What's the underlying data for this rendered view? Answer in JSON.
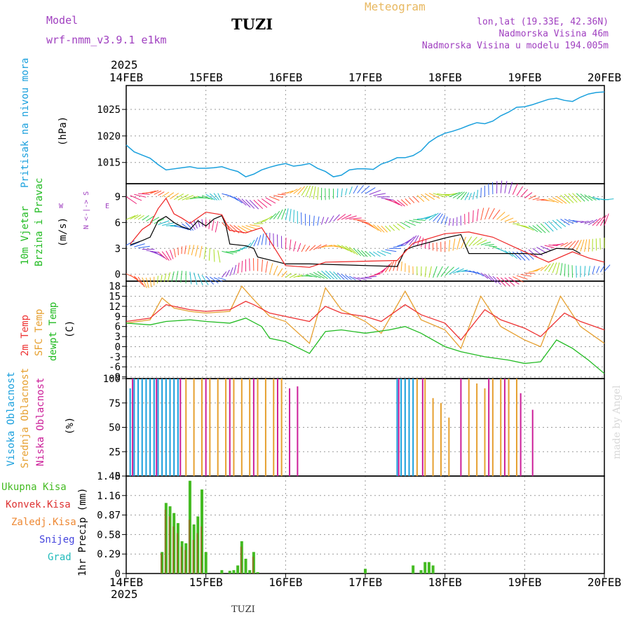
{
  "header": {
    "model_label": "Model",
    "model_name": "wrf-nmm_v3.9.1 e1km",
    "station": "TUZI",
    "product": "Meteogram",
    "lonlat": "lon,lat (19.33E, 42.36N)",
    "elevation": "Nadmorska Visina 46m",
    "model_elevation": "Nadmorska Visina u modelu 194.005m",
    "year": "2025",
    "footer_station": "TUZI",
    "credit": "made by Angel"
  },
  "colors": {
    "pressure": "#1aa0dd",
    "wind_speed": "#000000",
    "gust": "#ee2222",
    "temp2m": "#ee3333",
    "sfc_temp": "#e6a030",
    "dewpt": "#22bb22",
    "high_cloud": "#1aa0dd",
    "mid_cloud": "#e6a030",
    "low_cloud": "#cc1f99",
    "total_precip": "#44bb22",
    "conv_precip": "#dd3333",
    "frozen_precip": "#ee8833",
    "snow": "#4444dd",
    "hail": "#22bbbb",
    "header_violet": "#a040c0",
    "meteogram_title": "#e8b860"
  },
  "chart_data": [
    {
      "type": "line",
      "panel": "pressure",
      "xlabels": [
        "14FEB",
        "15FEB",
        "16FEB",
        "17FEB",
        "18FEB",
        "19FEB",
        "20FEB"
      ],
      "ylabel_main": "Pritisak na nivou mora",
      "ylabel_unit": "(hPa)",
      "yticks": [
        1015,
        1020,
        1025
      ],
      "ylim": [
        1011,
        1029.5
      ],
      "series": [
        {
          "x": [
            0,
            0.1,
            0.2,
            0.3,
            0.4,
            0.5,
            0.6,
            0.7,
            0.8,
            0.9,
            1,
            1.1,
            1.2,
            1.3,
            1.4,
            1.5,
            1.6,
            1.7,
            1.8,
            1.9,
            2,
            2.1,
            2.2,
            2.3,
            2.4,
            2.5,
            2.6,
            2.7,
            2.8,
            2.9,
            3,
            3.1,
            3.2,
            3.3,
            3.4,
            3.5,
            3.6,
            3.7,
            3.8,
            3.9,
            4,
            4.1,
            4.2,
            4.3,
            4.4,
            4.5,
            4.6,
            4.7,
            4.8,
            4.9,
            5,
            5.1,
            5.2,
            5.3,
            5.4,
            5.5,
            5.6,
            5.7,
            5.8,
            5.9,
            6
          ],
          "y": [
            1018.3,
            1017.0,
            1016.4,
            1015.8,
            1014.6,
            1013.6,
            1013.8,
            1014.0,
            1014.2,
            1013.9,
            1013.9,
            1014.0,
            1014.2,
            1013.7,
            1013.3,
            1012.3,
            1012.8,
            1013.6,
            1014.1,
            1014.5,
            1014.8,
            1014.3,
            1014.5,
            1014.8,
            1013.9,
            1013.3,
            1012.3,
            1012.6,
            1013.6,
            1013.8,
            1013.8,
            1013.7,
            1014.7,
            1015.2,
            1015.9,
            1015.9,
            1016.3,
            1017.2,
            1018.8,
            1019.8,
            1020.5,
            1020.9,
            1021.4,
            1022.0,
            1022.5,
            1022.3,
            1022.8,
            1023.8,
            1024.5,
            1025.4,
            1025.5,
            1025.9,
            1026.4,
            1026.9,
            1027.1,
            1026.7,
            1026.5,
            1027.3,
            1027.9,
            1028.2,
            1028.3
          ]
        }
      ]
    },
    {
      "type": "line",
      "panel": "wind",
      "xlabels": [
        "14FEB",
        "15FEB",
        "16FEB",
        "17FEB",
        "18FEB",
        "19FEB",
        "20FEB"
      ],
      "ylabel_main": "10m Vjetar",
      "ylabel_sub": "Brzina i Pravac",
      "ylabel_unit": "(m/s)",
      "compass_ns": "N <-|-> S",
      "compass_w": "W",
      "compass_e": "E",
      "yticks": [
        0,
        3,
        6,
        9
      ],
      "ylim": [
        -0.8,
        10.5
      ],
      "series": [
        {
          "name": "speed",
          "x": [
            0.05,
            0.2,
            0.3,
            0.4,
            0.5,
            0.6,
            0.7,
            0.8,
            0.9,
            1.0,
            1.1,
            1.2,
            1.25,
            1.3,
            1.5,
            1.6,
            1.65,
            2.0,
            2.3,
            3.4,
            3.5,
            3.6,
            4.0,
            4.2,
            4.3,
            5.0,
            5.2,
            5.4,
            5.6,
            5.7
          ],
          "y": [
            3.4,
            3.9,
            4.3,
            6.2,
            6.7,
            6.0,
            5.5,
            5.2,
            6.2,
            5.6,
            6.4,
            6.8,
            5.7,
            3.5,
            3.3,
            3.0,
            2.0,
            1.2,
            1.2,
            0.9,
            2.8,
            3.2,
            4.2,
            4.6,
            2.4,
            2.4,
            2.3,
            3.0,
            2.9,
            2.4
          ]
        },
        {
          "name": "gust",
          "x": [
            0.05,
            0.2,
            0.3,
            0.4,
            0.5,
            0.6,
            0.7,
            0.8,
            1.0,
            1.2,
            1.3,
            1.5,
            1.7,
            2.0,
            2.3,
            2.5,
            3.4,
            3.6,
            4.0,
            4.3,
            4.6,
            5.0,
            5.3,
            5.6,
            5.8,
            6.0
          ],
          "y": [
            3.5,
            5.2,
            5.8,
            7.6,
            8.8,
            7.0,
            6.5,
            5.9,
            7.2,
            6.9,
            5.1,
            4.8,
            5.4,
            1.0,
            0.8,
            1.4,
            1.6,
            3.6,
            4.7,
            4.9,
            4.3,
            2.6,
            1.4,
            2.6,
            1.9,
            1.4
          ]
        }
      ]
    },
    {
      "type": "line",
      "panel": "temperature",
      "xlabels": [
        "14FEB",
        "15FEB",
        "16FEB",
        "17FEB",
        "18FEB",
        "19FEB",
        "20FEB"
      ],
      "ylabel_2m": "2m Temp",
      "ylabel_sfc": "SFC Temp",
      "ylabel_dew": "dewpt Temp",
      "ylabel_unit": "(C)",
      "yticks": [
        -9,
        -6,
        -3,
        0,
        3,
        6,
        9,
        12,
        15,
        18
      ],
      "ylim": [
        -9.5,
        19.5
      ],
      "series": [
        {
          "name": "2m",
          "x": [
            0,
            0.3,
            0.5,
            0.8,
            1.0,
            1.3,
            1.5,
            1.6,
            1.8,
            2.0,
            2.3,
            2.5,
            2.7,
            3.0,
            3.2,
            3.5,
            3.7,
            4.0,
            4.2,
            4.5,
            4.7,
            5.0,
            5.2,
            5.5,
            5.7,
            6.0
          ],
          "y": [
            7.5,
            8.5,
            12.5,
            11.0,
            10.5,
            11.0,
            13.5,
            12.5,
            10.0,
            9.0,
            7.5,
            12.0,
            10.0,
            9.0,
            7.5,
            12.5,
            9.5,
            7.0,
            2.0,
            11.0,
            8.0,
            5.5,
            3.0,
            10.0,
            7.5,
            5.0
          ]
        },
        {
          "name": "sfc",
          "x": [
            0,
            0.3,
            0.45,
            0.6,
            0.8,
            1.0,
            1.3,
            1.45,
            1.6,
            1.8,
            2.0,
            2.3,
            2.5,
            2.7,
            3.0,
            3.2,
            3.5,
            3.7,
            4.0,
            4.2,
            4.45,
            4.7,
            5.0,
            5.2,
            5.45,
            5.7,
            6.0
          ],
          "y": [
            7.0,
            8.0,
            14.5,
            11.5,
            10.5,
            10.0,
            10.5,
            18.0,
            14.0,
            9.0,
            7.5,
            1.0,
            17.5,
            11.0,
            7.5,
            4.0,
            16.5,
            8.0,
            5.0,
            -0.5,
            15.0,
            6.0,
            2.0,
            0.0,
            15.0,
            6.0,
            1.0
          ]
        },
        {
          "name": "dewpt",
          "x": [
            0,
            0.3,
            0.5,
            0.8,
            1.0,
            1.3,
            1.5,
            1.7,
            1.8,
            2.0,
            2.3,
            2.5,
            2.7,
            3.0,
            3.3,
            3.5,
            3.7,
            4.0,
            4.2,
            4.5,
            4.8,
            5.0,
            5.2,
            5.4,
            5.6,
            5.8,
            6.0
          ],
          "y": [
            7.0,
            6.5,
            7.5,
            8.0,
            7.5,
            7.0,
            8.5,
            6.0,
            2.5,
            1.5,
            -2.0,
            4.5,
            5.0,
            4.0,
            5.0,
            6.0,
            4.0,
            0.0,
            -1.5,
            -3.0,
            -4.0,
            -5.0,
            -4.5,
            2.0,
            -0.5,
            -4.0,
            -8.0
          ]
        }
      ]
    },
    {
      "type": "bar",
      "panel": "clouds",
      "xlabels": [
        "14FEB",
        "15FEB",
        "16FEB",
        "17FEB",
        "18FEB",
        "19FEB",
        "20FEB"
      ],
      "ylabel_high": "Visoka Oblacnost",
      "ylabel_mid": "Srednja Oblacnost",
      "ylabel_low": "Niska Oblacnost",
      "ylabel_unit": "(%)",
      "yticks": [
        0,
        25,
        50,
        75,
        100
      ],
      "ylim": [
        0,
        100
      ],
      "series": [
        {
          "name": "high",
          "x": [
            0.05,
            0.1,
            0.15,
            0.2,
            0.25,
            0.3,
            0.35,
            0.4,
            0.45,
            0.5,
            0.55,
            0.6,
            0.65,
            3.4,
            3.45,
            3.5,
            3.55,
            3.6
          ],
          "values": [
            90,
            100,
            100,
            100,
            100,
            100,
            100,
            100,
            100,
            100,
            100,
            100,
            100,
            100,
            100,
            100,
            100,
            100
          ]
        },
        {
          "name": "mid",
          "x": [
            0.75,
            0.85,
            0.95,
            1.05,
            1.15,
            1.25,
            1.35,
            1.45,
            1.55,
            1.65,
            1.75,
            1.85,
            1.95,
            3.65,
            3.75,
            3.85,
            3.95,
            4.05,
            4.3,
            4.4,
            4.5,
            4.6,
            4.7,
            4.8,
            4.9
          ],
          "values": [
            100,
            100,
            100,
            100,
            100,
            100,
            100,
            100,
            100,
            100,
            100,
            100,
            100,
            100,
            100,
            80,
            75,
            60,
            100,
            95,
            90,
            100,
            100,
            100,
            100
          ]
        },
        {
          "name": "low",
          "x": [
            0.08,
            0.38,
            0.68,
            1.0,
            1.3,
            1.6,
            1.9,
            2.05,
            2.15,
            3.42,
            3.72,
            4.2,
            4.55,
            4.75,
            4.95,
            5.1
          ],
          "values": [
            100,
            100,
            100,
            100,
            100,
            100,
            100,
            90,
            92,
            100,
            100,
            100,
            100,
            100,
            85,
            68
          ]
        }
      ]
    },
    {
      "type": "bar",
      "panel": "precip",
      "xlabels": [
        "14FEB",
        "15FEB",
        "16FEB",
        "17FEB",
        "18FEB",
        "19FEB",
        "20FEB"
      ],
      "year": "2025",
      "ylabel_total": "Ukupna Kisa",
      "ylabel_conv": "Konvek.Kisa",
      "ylabel_frozen": "Zaledj.Kisa",
      "ylabel_snow": "Snijeg",
      "ylabel_hail": "Grad",
      "ylabel_unit": "1hr Precip (mm)",
      "yticks": [
        0,
        0.29,
        0.58,
        0.87,
        1.16,
        1.45
      ],
      "ylim": [
        0,
        1.45
      ],
      "series": [
        {
          "name": "total",
          "x": [
            0.45,
            0.5,
            0.55,
            0.6,
            0.65,
            0.7,
            0.75,
            0.8,
            0.85,
            0.9,
            0.95,
            1.0,
            1.2,
            1.3,
            1.35,
            1.4,
            1.45,
            1.5,
            1.55,
            1.6,
            1.65,
            3.0,
            3.6,
            3.7,
            3.75,
            3.8,
            3.85
          ],
          "values": [
            0.32,
            1.05,
            1.0,
            0.9,
            0.75,
            0.48,
            0.45,
            1.38,
            0.73,
            0.85,
            1.25,
            0.32,
            0.05,
            0.04,
            0.05,
            0.12,
            0.48,
            0.22,
            0.05,
            0.32,
            0.02,
            0.07,
            0.12,
            0.05,
            0.17,
            0.17,
            0.12
          ]
        },
        {
          "name": "convective",
          "x": [
            0.45,
            0.5,
            0.55,
            0.6,
            0.65,
            0.7,
            0.75,
            0.8,
            0.85,
            0.9,
            0.95,
            1.45,
            1.6
          ],
          "values": [
            0.3,
            0.95,
            0.85,
            0.7,
            0.6,
            0.4,
            0.35,
            0.8,
            0.5,
            0.6,
            0.7,
            0.4,
            0.25
          ]
        }
      ]
    }
  ]
}
